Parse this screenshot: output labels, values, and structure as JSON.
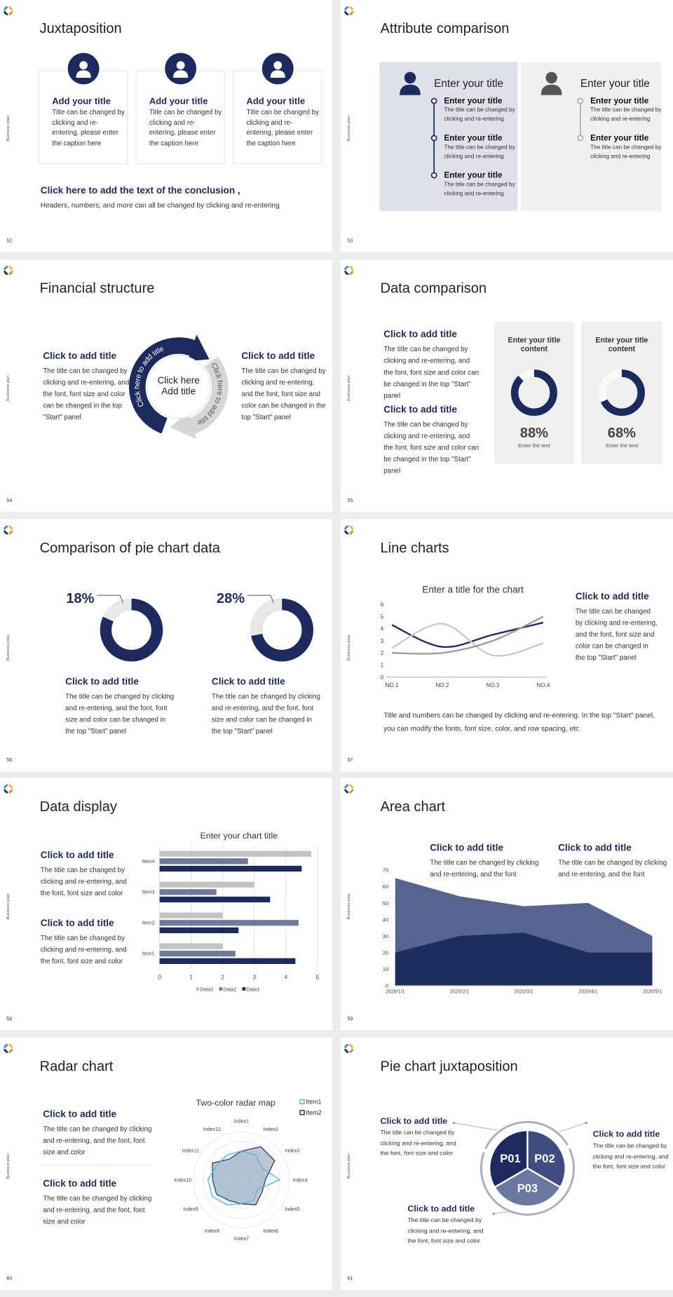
{
  "slides": [
    {
      "number": "52",
      "side_label": "Business plan",
      "title": "Juxtaposition",
      "cards": [
        {
          "title": "Add your title",
          "text": "Title can be changed by clicking and re-entering, please enter the caption here"
        },
        {
          "title": "Add your title",
          "text": "Title can be changed by clicking and re-entering, please enter the caption here"
        },
        {
          "title": "Add your title",
          "text": "Title can be changed by clicking and re-entering, please enter the caption here"
        }
      ],
      "conclusion": "Click here to add the text of the conclusion ,",
      "note": "Headers, numbers, and more can all be changed by clicking and re-entering"
    },
    {
      "number": "53",
      "side_label": "Business plan",
      "title": "Attribute comparison",
      "panels": [
        {
          "heading": "Enter your title",
          "items": [
            {
              "title": "Enter your title",
              "text": "The title can be changed by clicking and re-entering"
            },
            {
              "title": "Enter your title",
              "text": "The title can be changed by clicking and re-entering"
            },
            {
              "title": "Enter your title",
              "text": "The title can be changed by clicking and re-entering"
            }
          ]
        },
        {
          "heading": "Enter your title",
          "items": [
            {
              "title": "Enter your title",
              "text": "The title can be changed by clicking and re-entering"
            },
            {
              "title": "Enter your title",
              "text": "The title can be changed by clicking and re-entering"
            }
          ]
        }
      ]
    },
    {
      "number": "54",
      "side_label": "Business plan",
      "title": "Financial structure",
      "left": {
        "title": "Click to add title",
        "text": "The title can be changed by clicking and re-entering, and the font, font size and color can be changed in the top \"Start\" panel"
      },
      "right": {
        "title": "Click to add title",
        "text": "The title can be changed by clicking and re-entering, and the font, font size and color can be changed in the top \"Start\" panel"
      },
      "center": [
        "Click here",
        "Add title"
      ],
      "arc_labels": [
        "Click here to add title",
        "Click here to add title"
      ]
    },
    {
      "number": "55",
      "side_label": "Business plan",
      "title": "Data comparison",
      "blocks": [
        {
          "title": "Click to add title",
          "text": "The title can be changed by clicking and re-entering, and the font, font size and color can be changed in the top \"Start\" panel"
        },
        {
          "title": "Click to add title",
          "text": "The title can be changed by clicking and re-entering, and the font, font size and color can be changed in the top \"Start\" panel"
        }
      ],
      "cards": [
        {
          "title": "Enter your title content",
          "value": 88,
          "value_label": "88%",
          "caption": "Enter the text"
        },
        {
          "title": "Enter your title content",
          "value": 68,
          "value_label": "68%",
          "caption": "Enter the text"
        }
      ]
    },
    {
      "number": "56",
      "side_label": "Business plan",
      "title": "Comparison of pie chart data",
      "items": [
        {
          "value": 18,
          "value_label": "18%",
          "title": "Click to add title",
          "text": "The title can be changed by clicking and re-entering, and the font, font size and color can be changed in the top \"Start\" panel"
        },
        {
          "value": 28,
          "value_label": "28%",
          "title": "Click to add title",
          "text": "The title can be changed by clicking and re-entering, and the font, font size and color can be changed in the top \"Start\" panel"
        }
      ]
    },
    {
      "number": "57",
      "side_label": "Business plan",
      "title": "Line charts",
      "chart": {
        "type": "line",
        "title": "Enter a title for the chart",
        "categories": [
          "NO.1",
          "NO.2",
          "NO.3",
          "NO.4"
        ],
        "series": [
          {
            "color": "#1c2a5e",
            "values": [
              4.3,
              2.5,
              3.5,
              4.5
            ]
          },
          {
            "color": "#c9c9c9",
            "values": [
              2.4,
              4.4,
              1.8,
              2.8
            ]
          },
          {
            "color": "#9b9b9b",
            "values": [
              2,
              2,
              3,
              5
            ]
          }
        ],
        "ylim": [
          0,
          6
        ],
        "yticks": [
          0,
          1,
          2,
          3,
          4,
          5,
          6
        ]
      },
      "side": {
        "title": "Click to add title",
        "text": "The title can be changed by clicking and re-entering, and the font, font size and color can be changed in the top \"Start\" panel"
      },
      "note": "Title and numbers can be changed by clicking and re-entering. In the top \"Start\" panel, you can modify the fonts, font size, color, and row spacing, etc"
    },
    {
      "number": "58",
      "side_label": "Business plan",
      "title": "Data display",
      "chart": {
        "type": "barh",
        "title": "Enter your chart title",
        "categories": [
          "Item1",
          "Item2",
          "Item3",
          "Item4"
        ],
        "series": [
          {
            "name": "Data1",
            "color": "#1c2a5e",
            "values": [
              4.3,
              2.5,
              3.5,
              4.5
            ]
          },
          {
            "name": "Data2",
            "color": "#6e7898",
            "values": [
              2.4,
              4.4,
              1.8,
              2.8
            ]
          },
          {
            "name": "Data3",
            "color": "#c3c3c3",
            "values": [
              2,
              2,
              3,
              4.8
            ]
          }
        ],
        "xlim": [
          0,
          5
        ],
        "xticks": [
          0,
          1,
          2,
          3,
          4,
          5
        ],
        "grid": true
      },
      "blocks": [
        {
          "title": "Click to add title",
          "text": "The title can be changed by clicking and re-entering, and the font, font size and color"
        },
        {
          "title": "Click to add title",
          "text": "The title can be changed by clicking and re-entering, and the font, font size and color"
        }
      ]
    },
    {
      "number": "59",
      "side_label": "Business plan",
      "title": "Area chart",
      "chart": {
        "type": "area",
        "categories": [
          "2020/1/1",
          "2020/2/1",
          "2020/3/1",
          "2020/4/1",
          "2020/5/1"
        ],
        "series": [
          {
            "color": "#56658f",
            "values": [
              65,
              54,
              48,
              50,
              30
            ]
          },
          {
            "color": "#1c2d5e",
            "values": [
              20,
              30,
              32,
              20,
              20
            ]
          }
        ],
        "ylim": [
          0,
          70
        ],
        "yticks": [
          0,
          10,
          20,
          30,
          40,
          50,
          60,
          70
        ]
      },
      "blocks": [
        {
          "title": "Click to add title",
          "text": "The title can be changed by clicking and re-entering, and the font"
        },
        {
          "title": "Click to add title",
          "text": "The title can be changed by clicking and re-entering, and the font"
        }
      ]
    },
    {
      "number": "60",
      "side_label": "Business plan",
      "title": "Radar chart",
      "chart": {
        "type": "radar",
        "title": "Two-color radar map",
        "categories": [
          "Index1",
          "Index2",
          "Index3",
          "Index4",
          "Index5",
          "Index6",
          "Index7",
          "Index8",
          "Index9",
          "Index10",
          "Index11",
          "Index12"
        ],
        "series": [
          {
            "name": "Item1",
            "color": "#4db3d6",
            "values": [
              3,
              3,
              2.5,
              4,
              2,
              2.5,
              2.5,
              3,
              3.5,
              3.5,
              3,
              3
            ]
          },
          {
            "name": "Item2",
            "color": "#1c2a5e",
            "values": [
              3,
              4,
              4,
              2.5,
              2.5,
              3,
              2.5,
              2.5,
              3,
              3,
              3.5,
              2.5
            ]
          }
        ],
        "rlim": [
          0,
          5
        ],
        "rticks": [
          1,
          2,
          3,
          4,
          5
        ]
      },
      "blocks": [
        {
          "title": "Click to add title",
          "text": "The title can be changed by clicking and re-entering, and the font, font size and color"
        },
        {
          "title": "Click to add title",
          "text": "The title can be changed by clicking and re-entering, and the font, font size and color"
        }
      ]
    },
    {
      "number": "61",
      "side_label": "Business plan",
      "title": "Pie chart juxtaposition",
      "segments": [
        "P01",
        "P02",
        "P03"
      ],
      "blocks": [
        {
          "title": "Click to add title",
          "text": "The title can be changed by clicking and re-entering, and the font, font size and color"
        },
        {
          "title": "Click to add title",
          "text": "The title can be changed by clicking and re-entering, and the font, font size and color"
        },
        {
          "title": "Click to add title",
          "text": "The title can be changed by clicking and re-entering, and the font, font size and color"
        }
      ]
    }
  ]
}
